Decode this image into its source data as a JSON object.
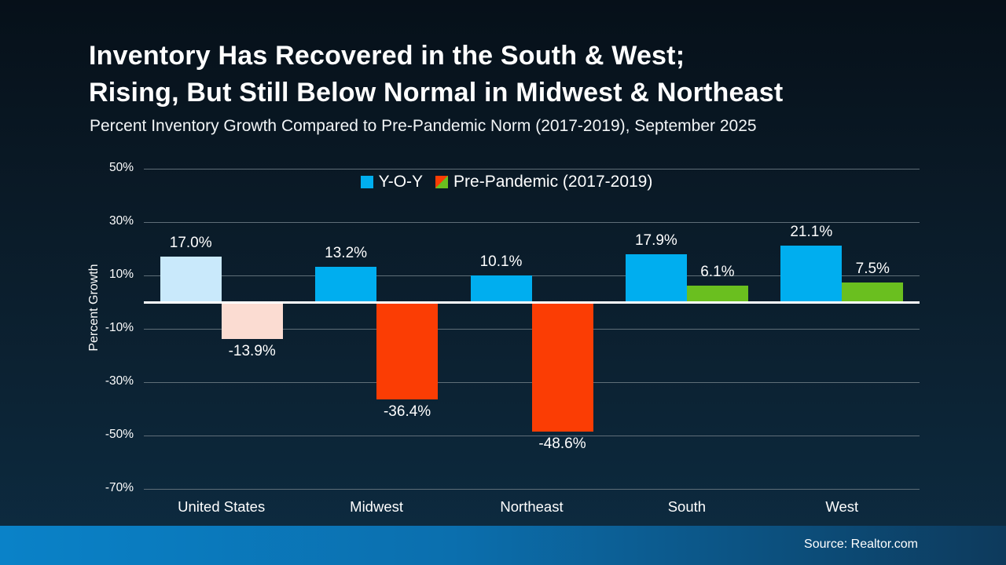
{
  "title_line1": "Inventory Has Recovered in the South & West;",
  "title_line2": "Rising, But Still Below Normal in Midwest & Northeast",
  "subtitle": "Percent Inventory Growth Compared to Pre-Pandemic Norm (2017-2019), September 2025",
  "legend": {
    "items": [
      {
        "label": "Y-O-Y",
        "swatch_color": "#00aeef"
      },
      {
        "label": "Pre-Pandemic (2017-2019)",
        "swatch_colors": [
          "#fb3d04",
          "#6abf1f"
        ]
      }
    ]
  },
  "footer": {
    "source_text": "Source: Realtor.com"
  },
  "colors": {
    "background_top": "#061019",
    "background_bottom": "#0d2c42",
    "yoy_bar": "#00aeef",
    "yoy_bar_united_states": "#c9e9fb",
    "pre_pandemic_negative": "#fb3d04",
    "pre_pandemic_negative_united_states": "#fbdcd2",
    "pre_pandemic_positive": "#6abf1f",
    "zero_line": "#ffffff",
    "gridline": "#5f6e78",
    "footer_left": "#0a82c8",
    "footer_right": "#0d3a5c"
  },
  "chart_data": {
    "type": "bar",
    "title": "Inventory Has Recovered in the South & West; Rising, But Still Below Normal in Midwest & Northeast",
    "subtitle": "Percent Inventory Growth Compared to Pre-Pandemic Norm (2017-2019), September 2025",
    "categories": [
      "United States",
      "Midwest",
      "Northeast",
      "South",
      "West"
    ],
    "series": [
      {
        "name": "Y-O-Y",
        "values": [
          17.0,
          13.2,
          10.1,
          17.9,
          21.1
        ],
        "labels": [
          "17.0%",
          "13.2%",
          "10.1%",
          "17.9%",
          "21.1%"
        ],
        "colors": [
          "#c9e9fb",
          "#00aeef",
          "#00aeef",
          "#00aeef",
          "#00aeef"
        ]
      },
      {
        "name": "Pre-Pandemic (2017-2019)",
        "values": [
          -13.9,
          -36.4,
          -48.6,
          6.1,
          7.5
        ],
        "labels": [
          "-13.9%",
          "-36.4%",
          "-48.6%",
          "6.1%",
          "7.5%"
        ],
        "colors": [
          "#fbdcd2",
          "#fb3d04",
          "#fb3d04",
          "#6abf1f",
          "#6abf1f"
        ]
      }
    ],
    "xlabel": "",
    "ylabel": "Percent Growth",
    "yticks": [
      50,
      30,
      10,
      -10,
      -30,
      -50,
      -70
    ],
    "ytick_labels": [
      "50%",
      "30%",
      "10%",
      "-10%",
      "-30%",
      "-50%",
      "-70%"
    ],
    "ylim": [
      -70,
      50
    ],
    "grid": true,
    "legend_position": "top-center",
    "source": "Source: Realtor.com"
  }
}
